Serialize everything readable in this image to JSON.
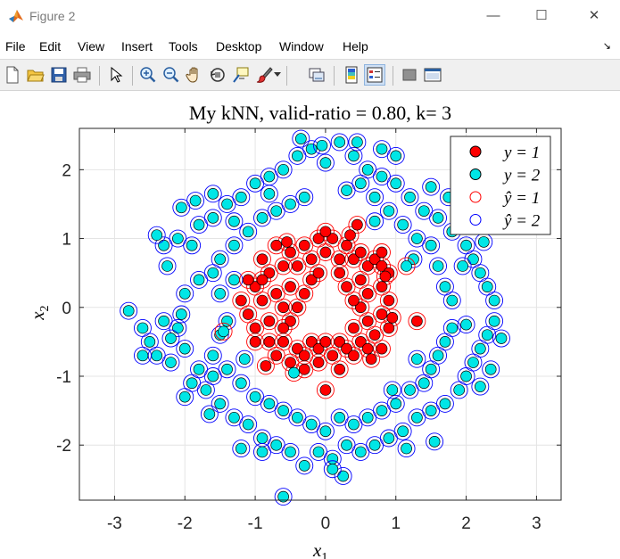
{
  "window": {
    "title": "Figure 2",
    "minimize_glyph": "—",
    "maximize_glyph": "☐",
    "close_glyph": "✕"
  },
  "menu": {
    "items": [
      "File",
      "Edit",
      "View",
      "Insert",
      "Tools",
      "Desktop",
      "Window",
      "Help"
    ],
    "dock_glyph": "↘"
  },
  "toolbar": {
    "icons": [
      "new-figure-icon",
      "open-file-icon",
      "save-icon",
      "print-icon",
      "pointer-icon",
      "zoom-in-icon",
      "zoom-out-icon",
      "pan-hand-icon",
      "rotate-3d-icon",
      "data-cursor-icon",
      "brush-icon",
      "link-plot-icon",
      "colorbar-icon",
      "legend-icon",
      "hide-plot-tools-icon",
      "show-plot-tools-icon"
    ]
  },
  "colors": {
    "class1_fill": "#ff0000",
    "class2_fill": "#00e6e6",
    "pred1_ring": "#ff0000",
    "pred2_ring": "#0000ff",
    "toolbar_bg": "#f0f0f0"
  },
  "chart_data": {
    "type": "scatter",
    "title": "My kNN, valid-ratio = 0.80, k= 3",
    "xlabel": "x1",
    "ylabel": "x2",
    "xlim": [
      -3.5,
      3.35
    ],
    "ylim": [
      -2.8,
      2.6
    ],
    "xticks": [
      -3,
      -2,
      -1,
      0,
      1,
      2,
      3
    ],
    "yticks": [
      -2,
      -1,
      0,
      1,
      2
    ],
    "grid": true,
    "legend_position": "top-right",
    "legend": [
      "y = 1",
      "y = 2",
      "ŷ = 1",
      "ŷ = 2"
    ],
    "series": [
      {
        "name": "y = 1",
        "points": [
          [
            -0.9,
            0.7
          ],
          [
            -0.8,
            0.5
          ],
          [
            -0.7,
            0.9
          ],
          [
            -0.6,
            0.6
          ],
          [
            -0.5,
            0.8
          ],
          [
            -0.4,
            0.6
          ],
          [
            -0.3,
            0.9
          ],
          [
            -0.2,
            0.7
          ],
          [
            -0.1,
            1.0
          ],
          [
            0.0,
            0.8
          ],
          [
            0.1,
            1.0
          ],
          [
            0.2,
            0.7
          ],
          [
            0.3,
            0.9
          ],
          [
            0.4,
            0.7
          ],
          [
            0.5,
            0.8
          ],
          [
            0.6,
            0.6
          ],
          [
            0.7,
            0.7
          ],
          [
            0.8,
            0.6
          ],
          [
            0.9,
            0.5
          ],
          [
            -1.0,
            0.3
          ],
          [
            -0.9,
            0.1
          ],
          [
            -1.1,
            -0.1
          ],
          [
            -1.0,
            -0.3
          ],
          [
            -0.8,
            -0.5
          ],
          [
            -0.7,
            -0.7
          ],
          [
            -0.6,
            -0.5
          ],
          [
            -0.5,
            -0.8
          ],
          [
            -0.4,
            -0.6
          ],
          [
            -0.3,
            -0.7
          ],
          [
            -0.2,
            -0.5
          ],
          [
            -0.1,
            -0.6
          ],
          [
            0.0,
            -0.5
          ],
          [
            0.1,
            -0.7
          ],
          [
            0.2,
            -0.5
          ],
          [
            0.3,
            -0.6
          ],
          [
            0.4,
            -0.7
          ],
          [
            0.5,
            -0.5
          ],
          [
            0.6,
            -0.6
          ],
          [
            0.7,
            -0.4
          ],
          [
            0.8,
            -0.6
          ],
          [
            0.9,
            -0.3
          ],
          [
            0.8,
            -0.1
          ],
          [
            0.9,
            0.1
          ],
          [
            0.8,
            0.3
          ],
          [
            0.6,
            0.2
          ],
          [
            0.5,
            0.0
          ],
          [
            0.6,
            -0.2
          ],
          [
            0.4,
            0.1
          ],
          [
            0.4,
            -0.3
          ],
          [
            0.5,
            0.4
          ],
          [
            -0.5,
            0.3
          ],
          [
            -0.6,
            0.0
          ],
          [
            -0.5,
            -0.2
          ],
          [
            -0.7,
            0.2
          ],
          [
            -0.8,
            -0.2
          ],
          [
            -0.4,
            0.0
          ],
          [
            -0.6,
            -0.3
          ],
          [
            -0.3,
            0.2
          ],
          [
            -0.9,
            0.4
          ],
          [
            -1.2,
            0.1
          ],
          [
            -1.1,
            0.4
          ],
          [
            -1.0,
            -0.5
          ],
          [
            -0.2,
            0.4
          ],
          [
            0.3,
            0.3
          ],
          [
            0.2,
            0.5
          ],
          [
            -0.1,
            0.5
          ],
          [
            0.0,
            1.1
          ],
          [
            0.35,
            1.05
          ],
          [
            0.45,
            1.2
          ],
          [
            -0.3,
            -0.9
          ],
          [
            -0.1,
            -0.8
          ],
          [
            0.2,
            -0.9
          ],
          [
            0.0,
            -1.2
          ],
          [
            1.3,
            -0.2
          ],
          [
            0.8,
            0.8
          ],
          [
            0.65,
            -0.75
          ],
          [
            -0.85,
            -0.85
          ],
          [
            -0.55,
            0.95
          ],
          [
            0.95,
            -0.15
          ],
          [
            0.85,
            0.45
          ]
        ]
      },
      {
        "name": "y = 2",
        "points": [
          [
            -2.8,
            -0.05
          ],
          [
            -2.6,
            -0.3
          ],
          [
            -2.5,
            -0.5
          ],
          [
            -2.4,
            -0.7
          ],
          [
            -2.2,
            -0.8
          ],
          [
            -2.0,
            -0.6
          ],
          [
            -1.8,
            -0.9
          ],
          [
            -1.6,
            -1.0
          ],
          [
            -2.3,
            0.9
          ],
          [
            -2.1,
            1.0
          ],
          [
            -1.9,
            0.9
          ],
          [
            -1.8,
            1.2
          ],
          [
            -1.6,
            1.3
          ],
          [
            -1.4,
            1.5
          ],
          [
            -1.2,
            1.6
          ],
          [
            -1.0,
            1.8
          ],
          [
            -0.8,
            1.9
          ],
          [
            -0.6,
            2.0
          ],
          [
            -0.4,
            2.2
          ],
          [
            -0.2,
            2.3
          ],
          [
            0.0,
            2.1
          ],
          [
            0.2,
            2.4
          ],
          [
            0.4,
            2.2
          ],
          [
            0.6,
            2.0
          ],
          [
            0.8,
            1.9
          ],
          [
            1.0,
            1.8
          ],
          [
            1.2,
            1.6
          ],
          [
            1.4,
            1.4
          ],
          [
            1.6,
            1.3
          ],
          [
            1.8,
            1.1
          ],
          [
            2.0,
            0.9
          ],
          [
            2.1,
            0.7
          ],
          [
            2.2,
            0.5
          ],
          [
            2.3,
            0.3
          ],
          [
            2.4,
            0.1
          ],
          [
            2.4,
            -0.2
          ],
          [
            2.3,
            -0.4
          ],
          [
            2.2,
            -0.6
          ],
          [
            2.1,
            -0.8
          ],
          [
            2.0,
            -1.0
          ],
          [
            1.9,
            -1.2
          ],
          [
            1.7,
            -1.4
          ],
          [
            1.5,
            -1.5
          ],
          [
            1.3,
            -1.6
          ],
          [
            1.1,
            -1.8
          ],
          [
            0.9,
            -1.9
          ],
          [
            0.7,
            -2.0
          ],
          [
            0.5,
            -2.1
          ],
          [
            0.3,
            -2.0
          ],
          [
            0.1,
            -2.2
          ],
          [
            -0.1,
            -2.1
          ],
          [
            -0.3,
            -2.3
          ],
          [
            -0.5,
            -2.1
          ],
          [
            -0.7,
            -2.0
          ],
          [
            -0.9,
            -1.9
          ],
          [
            -1.1,
            -1.7
          ],
          [
            -1.3,
            -1.6
          ],
          [
            -1.5,
            -1.4
          ],
          [
            -1.7,
            -1.2
          ],
          [
            -1.9,
            -1.1
          ],
          [
            -2.0,
            -1.3
          ],
          [
            -2.1,
            -0.3
          ],
          [
            -2.3,
            -0.2
          ],
          [
            -2.0,
            0.2
          ],
          [
            -1.8,
            0.4
          ],
          [
            -1.6,
            0.5
          ],
          [
            -1.5,
            0.7
          ],
          [
            -1.3,
            0.9
          ],
          [
            -1.1,
            1.1
          ],
          [
            -0.9,
            1.3
          ],
          [
            -0.7,
            1.4
          ],
          [
            -0.5,
            1.5
          ],
          [
            -0.3,
            1.6
          ],
          [
            0.3,
            1.7
          ],
          [
            0.5,
            1.8
          ],
          [
            0.7,
            1.6
          ],
          [
            0.9,
            1.4
          ],
          [
            1.1,
            1.2
          ],
          [
            1.3,
            1.0
          ],
          [
            1.5,
            0.9
          ],
          [
            1.6,
            0.6
          ],
          [
            1.7,
            0.3
          ],
          [
            1.8,
            0.1
          ],
          [
            1.8,
            -0.3
          ],
          [
            1.7,
            -0.5
          ],
          [
            1.6,
            -0.7
          ],
          [
            1.5,
            -0.9
          ],
          [
            1.4,
            -1.1
          ],
          [
            1.2,
            -1.2
          ],
          [
            1.0,
            -1.4
          ],
          [
            0.8,
            -1.5
          ],
          [
            0.6,
            -1.6
          ],
          [
            0.4,
            -1.7
          ],
          [
            0.2,
            -1.6
          ],
          [
            0.0,
            -1.8
          ],
          [
            -0.2,
            -1.7
          ],
          [
            -0.4,
            -1.6
          ],
          [
            -0.6,
            -1.5
          ],
          [
            -0.8,
            -1.4
          ],
          [
            -1.0,
            -1.3
          ],
          [
            -1.2,
            -1.1
          ],
          [
            -1.4,
            -0.9
          ],
          [
            -1.6,
            -0.7
          ],
          [
            -1.5,
            -0.4
          ],
          [
            -1.4,
            -0.2
          ],
          [
            -1.5,
            0.2
          ],
          [
            -1.3,
            0.4
          ],
          [
            -0.6,
            -2.75
          ],
          [
            0.25,
            -2.45
          ],
          [
            -0.35,
            2.45
          ],
          [
            0.45,
            2.4
          ],
          [
            0.8,
            2.3
          ],
          [
            1.0,
            2.2
          ],
          [
            -2.25,
            0.6
          ],
          [
            -2.05,
            1.45
          ],
          [
            2.0,
            -0.25
          ],
          [
            1.95,
            0.6
          ],
          [
            -2.2,
            -0.45
          ],
          [
            2.2,
            -1.15
          ],
          [
            1.55,
            -1.95
          ],
          [
            -1.2,
            -2.05
          ],
          [
            -2.05,
            -0.1
          ],
          [
            1.3,
            -0.75
          ],
          [
            -1.15,
            -0.75
          ],
          [
            1.25,
            0.7
          ],
          [
            -1.3,
            1.25
          ],
          [
            0.7,
            1.25
          ],
          [
            0.95,
            -1.2
          ],
          [
            -0.8,
            1.65
          ],
          [
            1.75,
            1.6
          ],
          [
            -1.65,
            -1.55
          ],
          [
            2.35,
            -0.9
          ],
          [
            -2.4,
            1.05
          ],
          [
            -1.85,
            1.55
          ],
          [
            1.5,
            1.75
          ],
          [
            2.25,
            0.95
          ],
          [
            -0.05,
            2.35
          ],
          [
            -1.6,
            1.65
          ],
          [
            0.1,
            -2.35
          ],
          [
            -0.9,
            -2.1
          ],
          [
            1.15,
            -2.05
          ],
          [
            -2.6,
            -0.7
          ],
          [
            2.5,
            -0.45
          ]
        ]
      }
    ],
    "predicted_class1_indices_note": "",
    "pred": {
      "class1_extra": [
        [
          -1.45,
          -0.35
        ],
        [
          1.15,
          0.6
        ],
        [
          -0.45,
          -0.95
        ]
      ]
    }
  }
}
